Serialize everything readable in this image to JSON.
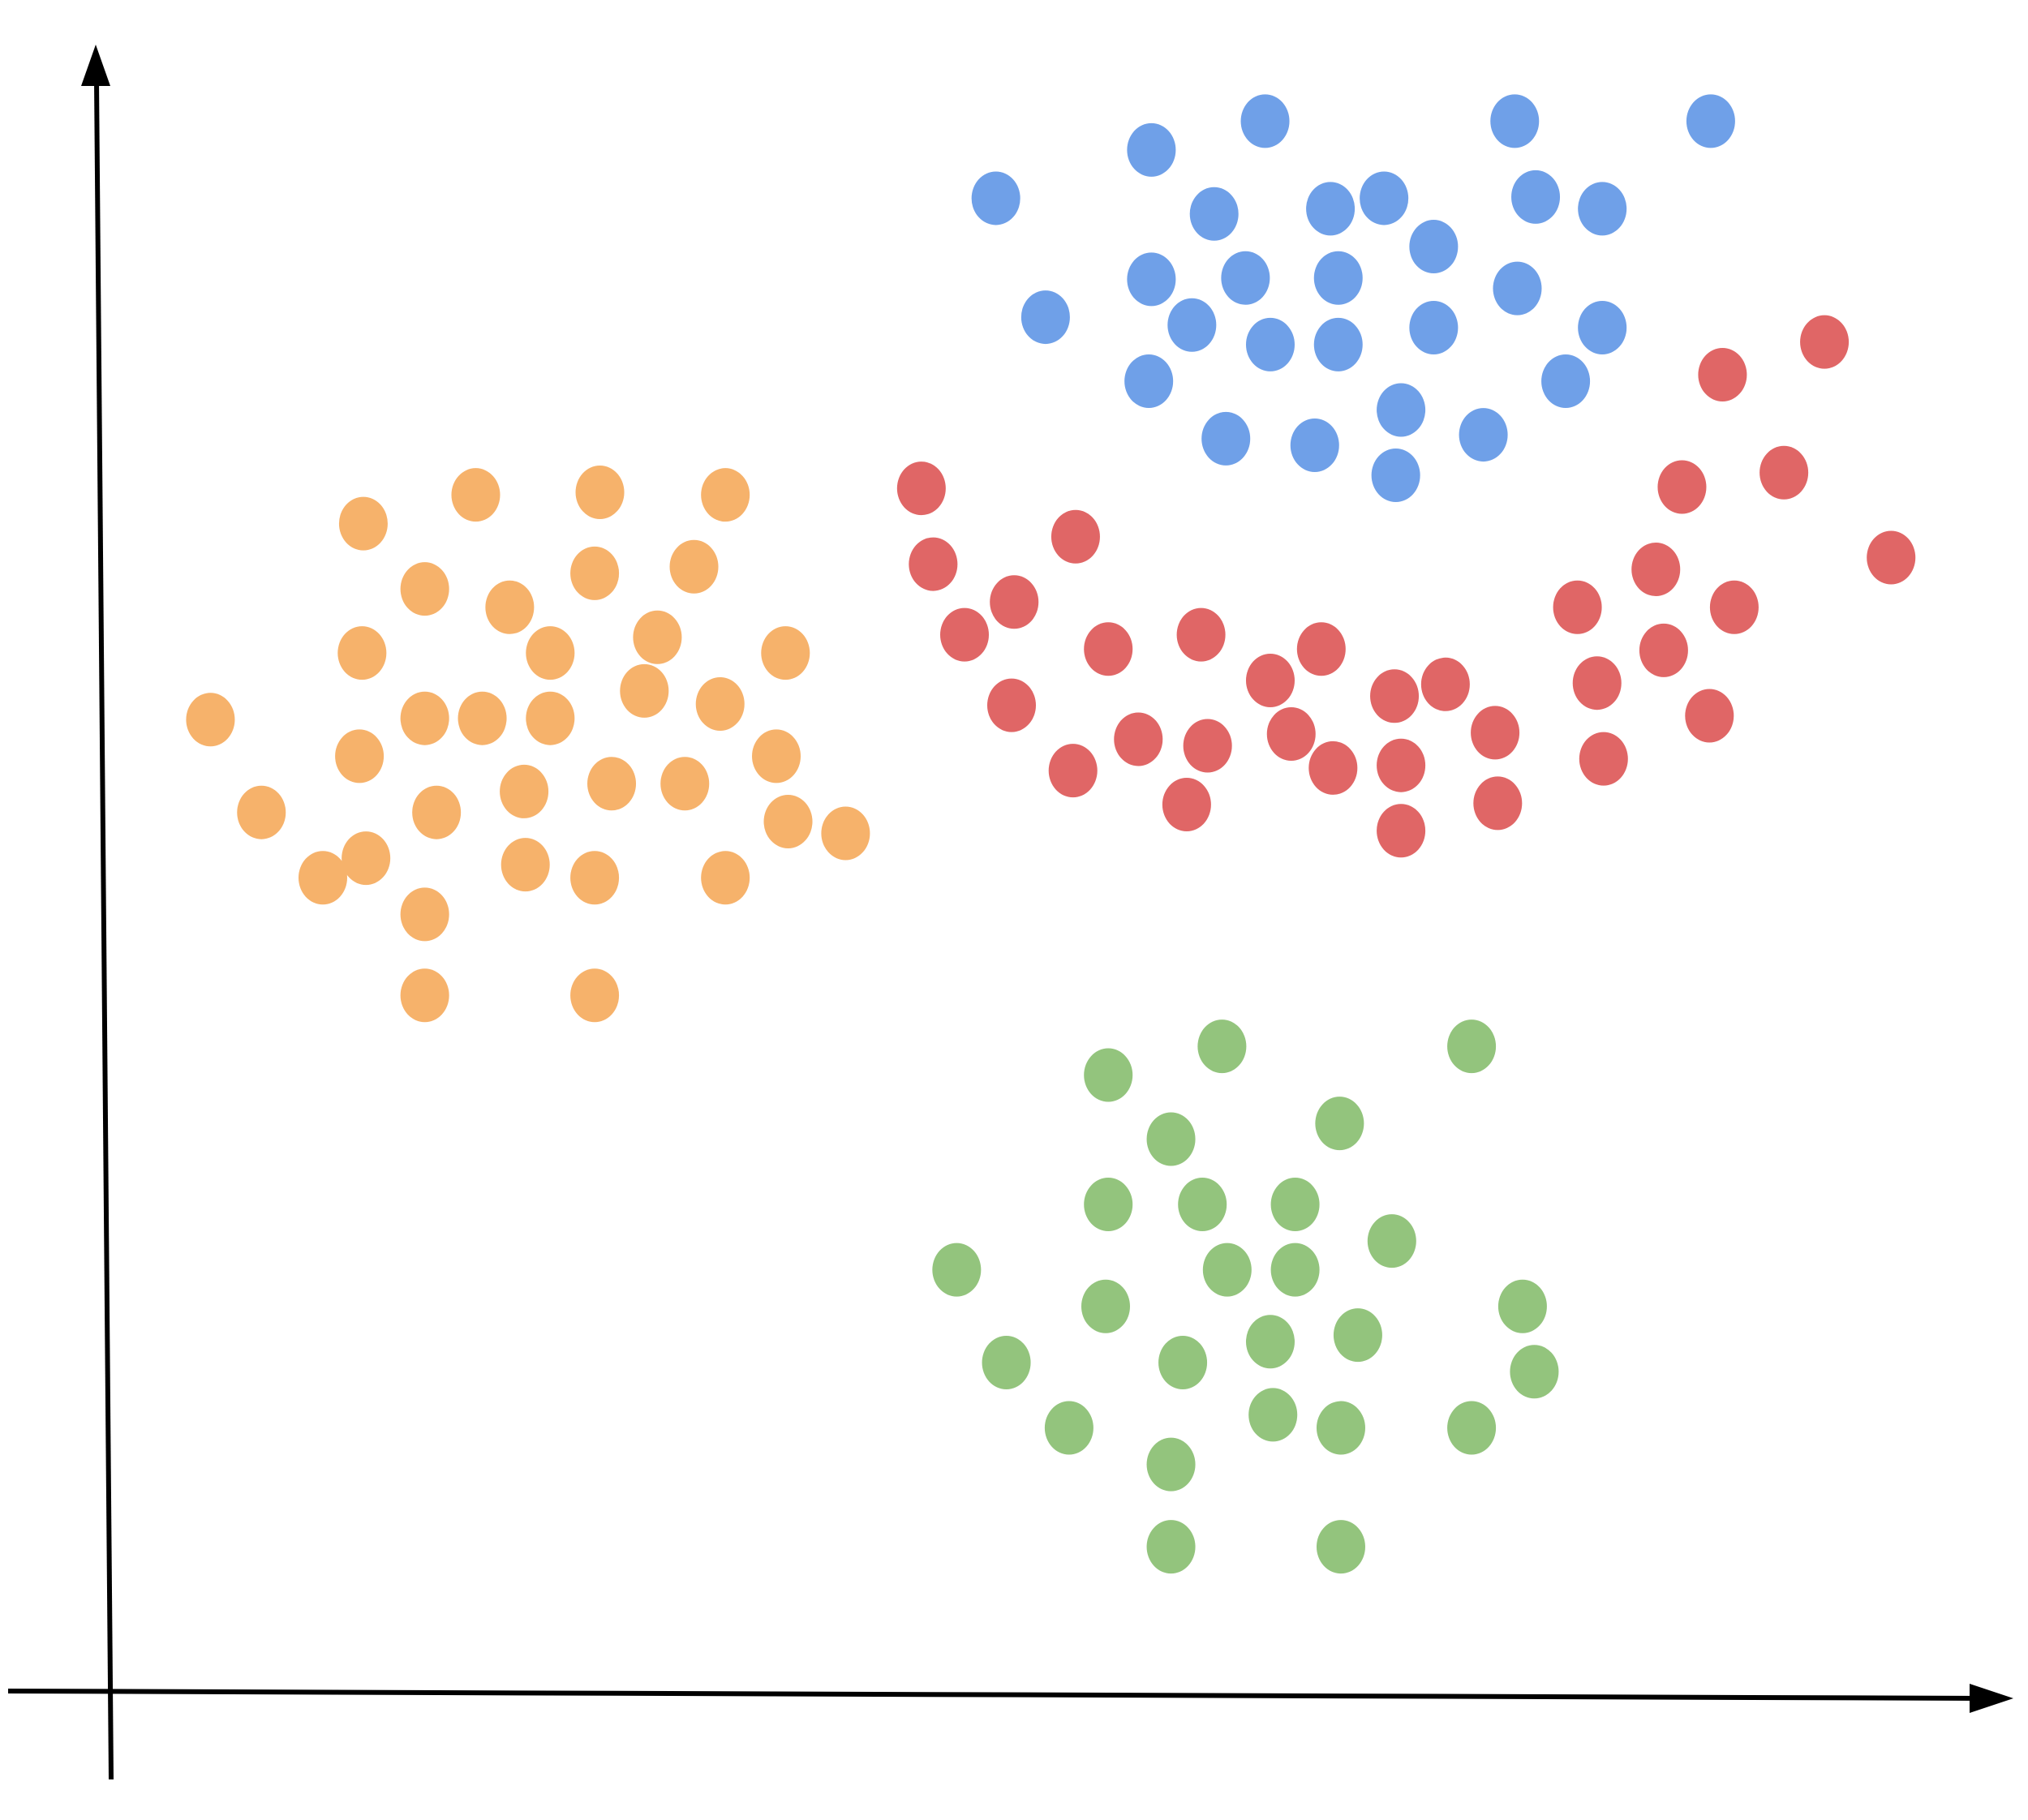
{
  "chart_data": {
    "type": "scatter",
    "xlim": [
      0,
      145
    ],
    "ylim": [
      0,
      125.5
    ],
    "series": [
      {
        "color": "#6fa0e8",
        "x": [
          67.7,
          79.6,
          88.3,
          107.4,
          122.4,
          84.4,
          93.3,
          97.4,
          109,
          114.1,
          101.2,
          79.6,
          86.8,
          93.9,
          107.6,
          71.5,
          82.7,
          88.7,
          93.9,
          101.2,
          114.1,
          79.4,
          111.3,
          98.7,
          85.3,
          92.1,
          105,
          98.3
        ],
        "values": [
          114.3,
          118,
          120.2,
          120.2,
          120.2,
          113.1,
          113.5,
          114.3,
          114.4,
          113.5,
          110.6,
          108.1,
          108.2,
          108.2,
          107.4,
          105.2,
          104.6,
          103.1,
          103.1,
          104.4,
          104.4,
          100.3,
          100.3,
          98.1,
          95.9,
          95.4,
          96.2,
          93.1
        ]
      },
      {
        "color": "#e06666",
        "x": [
          62,
          73.8,
          62.9,
          69.1,
          65.3,
          76.3,
          83.4,
          92.6,
          88.7,
          98.2,
          102.1,
          68.9,
          78.6,
          83.9,
          90.3,
          93.5,
          98.7,
          105.9,
          73.6,
          82.3,
          98.7,
          106.1,
          131.1,
          123.3,
          128,
          120.2,
          136.2,
          118.2,
          112.2,
          124.2,
          118.8,
          113.7,
          122.3,
          114.2
        ],
        "values": [
          92.1,
          88.4,
          86.3,
          83.4,
          80.9,
          79.8,
          80.9,
          79.8,
          77.4,
          76.2,
          77.1,
          75.5,
          72.9,
          72.4,
          73.3,
          70.7,
          70.9,
          73.4,
          70.5,
          67.9,
          65.9,
          68,
          103.3,
          100.8,
          93.3,
          92.2,
          86.8,
          85.9,
          83,
          83,
          79.7,
          77.2,
          74.7,
          71.4
        ]
      },
      {
        "color": "#f6b26b",
        "x": [
          19.3,
          27.9,
          37.4,
          47,
          24,
          30.5,
          37,
          44.6,
          19.2,
          33.6,
          41.8,
          51.6,
          7.6,
          24,
          28.4,
          33.6,
          40.8,
          46.6,
          19,
          50.9,
          11.5,
          24.9,
          31.6,
          38.3,
          43.9,
          51.8,
          56.2,
          16.2,
          19.5,
          31.7,
          37,
          47,
          24,
          24,
          37
        ],
        "values": [
          89.4,
          91.6,
          91.8,
          91.6,
          84.4,
          83,
          85.6,
          86.1,
          79.5,
          79.5,
          80.7,
          79.5,
          74.4,
          74.5,
          74.5,
          74.5,
          76.6,
          75.6,
          71.6,
          71.6,
          67.3,
          67.3,
          68.9,
          69.5,
          69.5,
          66.6,
          65.7,
          62.3,
          63.8,
          63.3,
          62.3,
          62.3,
          59.5,
          53.3,
          53.3
        ]
      },
      {
        "color": "#93c47d",
        "x": [
          85,
          104.1,
          76.3,
          81.1,
          94,
          76.3,
          83.5,
          90.6,
          98,
          64.7,
          85.4,
          90.6,
          76.1,
          108,
          88.7,
          95.4,
          68.5,
          82,
          108.9,
          73.3,
          88.9,
          94.1,
          104.1,
          81.1,
          81.1,
          94.1
        ],
        "values": [
          49.4,
          49.4,
          47.2,
          42.3,
          43.5,
          37.3,
          37.3,
          37.3,
          34.5,
          32.3,
          32.3,
          32.3,
          29.5,
          29.5,
          26.8,
          27.3,
          25.2,
          25.2,
          24.5,
          20.2,
          21.2,
          20.2,
          20.2,
          17.4,
          11.1,
          11.1
        ]
      }
    ]
  }
}
